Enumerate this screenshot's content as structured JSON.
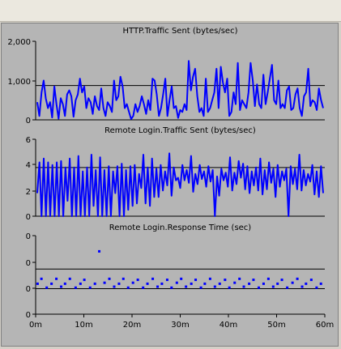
{
  "colors": {
    "plot_bg": "#b5b5b5",
    "series": "#0000ff",
    "axis": "#000000",
    "background": "#d4d0c8"
  },
  "x_axis": {
    "range_minutes": [
      0,
      60
    ],
    "tick_labels": [
      "0m",
      "10m",
      "20m",
      "30m",
      "40m",
      "50m",
      "60m"
    ]
  },
  "chart_data": [
    {
      "type": "line",
      "title": "HTTP.Traffic Sent (bytes/sec)",
      "ylim": [
        0,
        2000
      ],
      "ytick_labels": [
        "2,000",
        "1,000",
        "0"
      ],
      "reference_line_y": 875,
      "series": [
        {
          "values": [
            450,
            100,
            700,
            1000,
            550,
            300,
            450,
            60,
            850,
            400,
            30,
            550,
            400,
            100,
            650,
            750,
            600,
            80,
            500,
            650,
            1050,
            700,
            850,
            300,
            550,
            450,
            150,
            600,
            350,
            250,
            800,
            300,
            100,
            450,
            350,
            200,
            1000,
            500,
            600,
            1100,
            850,
            300,
            400,
            200,
            20,
            100,
            400,
            200,
            350,
            600,
            400,
            150,
            500,
            250,
            1050,
            1000,
            650,
            100,
            300,
            650,
            1050,
            100,
            500,
            850,
            300,
            350,
            50,
            250,
            200,
            400,
            250,
            1500,
            750,
            1100,
            1300,
            600,
            200,
            300,
            100,
            1050,
            200,
            300,
            500,
            700,
            1300,
            300,
            1350,
            950,
            700,
            1050,
            100,
            200,
            700,
            400,
            1450,
            250,
            500,
            400,
            300,
            700,
            1450,
            1000,
            350,
            900,
            400,
            300,
            1150,
            400,
            700,
            1050,
            1400,
            500,
            400,
            1000,
            300,
            400,
            300,
            750,
            850,
            250,
            300,
            650,
            800,
            300,
            100,
            600,
            700,
            1300,
            350,
            500,
            450,
            250,
            800,
            500,
            300
          ]
        }
      ]
    },
    {
      "type": "line",
      "title": "Remote Login.Traffic Sent (bytes/sec)",
      "ylim": [
        0,
        6
      ],
      "ytick_labels": [
        "6",
        "4",
        "2",
        "0"
      ],
      "reference_line_y": 3.8,
      "series": [
        {
          "values": [
            1.8,
            4.2,
            0,
            4.5,
            0,
            4.2,
            0,
            4.0,
            0,
            4.2,
            0,
            4.3,
            0,
            3.8,
            1.2,
            4.5,
            0,
            3.8,
            0,
            4.7,
            0,
            3.5,
            0,
            3.8,
            0,
            4.8,
            0.8,
            3.6,
            0,
            4.6,
            0,
            3.6,
            0,
            3.9,
            0,
            3.5,
            1.8,
            3.9,
            0,
            4.1,
            0,
            3.6,
            0.5,
            3.9,
            0.8,
            4.0,
            1.0,
            3.3,
            2.2,
            4.8,
            1.0,
            3.8,
            0.8,
            4.5,
            1.5,
            3.7,
            1.5,
            4.0,
            2.0,
            3.5,
            2.4,
            4.9,
            1.6,
            3.8,
            2.8,
            3.0,
            2.2,
            4.0,
            2.8,
            3.6,
            2.6,
            4.7,
            1.9,
            3.3,
            2.5,
            4.0,
            2.9,
            3.5,
            2.3,
            3.9,
            2.7,
            3.6,
            0,
            3.1,
            1.6,
            3.7,
            2.8,
            3.4,
            2.3,
            4.6,
            2.0,
            3.4,
            2.5,
            4.3,
            3.0,
            4.1,
            2.1,
            3.9,
            1.8,
            3.5,
            2.4,
            3.8,
            2.0,
            4.5,
            1.7,
            3.6,
            2.1,
            4.2,
            2.6,
            3.7,
            1.5,
            4.0,
            2.3,
            3.5,
            2.8,
            3.7,
            0,
            3.9,
            2.5,
            3.7,
            2.1,
            4.8,
            2.0,
            3.6,
            2.4,
            3.3,
            2.7,
            4.0,
            1.7,
            3.5,
            1.5,
            3.9,
            1.8
          ]
        }
      ]
    },
    {
      "type": "scatter",
      "title": "Remote Login.Response Time (sec)",
      "ylim": [
        0,
        4
      ],
      "ytick_labels": [
        "0",
        "0",
        "0",
        "0"
      ],
      "reference_lines_y": [
        1.3,
        2.3
      ],
      "series": [
        {
          "x": [
            0.4,
            1.2,
            2.3,
            3.3,
            4.3,
            5.3,
            6.1,
            7.1,
            8.3,
            9.3,
            10.1,
            11.3,
            12.3,
            13.2,
            14.3,
            15.3,
            16.3,
            17.3,
            18.2,
            19.2,
            20.2,
            21.2,
            22.3,
            23.2,
            24.3,
            25.3,
            26.2,
            27.3,
            28.2,
            29.3,
            30.2,
            31.2,
            32.3,
            33.2,
            34.3,
            35.1,
            36.2,
            37.2,
            38.2,
            39.3,
            40.2,
            41.3,
            42.3,
            43.2,
            44.3,
            45.2,
            46.3,
            47.3,
            48.3,
            49.3,
            50.2,
            51.1,
            52.2,
            53.3,
            54.3,
            55.3,
            56.1,
            57.2,
            58.3,
            59.2
          ],
          "y": [
            1.55,
            1.8,
            1.35,
            1.55,
            1.8,
            1.4,
            1.55,
            1.8,
            1.35,
            1.55,
            1.75,
            1.35,
            1.55,
            3.2,
            1.6,
            1.8,
            1.4,
            1.55,
            1.8,
            1.35,
            1.6,
            1.75,
            1.35,
            1.55,
            1.8,
            1.4,
            1.55,
            1.75,
            1.35,
            1.6,
            1.8,
            1.4,
            1.55,
            1.75,
            1.35,
            1.55,
            1.8,
            1.4,
            1.55,
            1.75,
            1.35,
            1.6,
            1.8,
            1.4,
            1.55,
            1.75,
            1.35,
            1.55,
            1.8,
            1.4,
            1.55,
            1.75,
            1.35,
            1.6,
            1.8,
            1.4,
            1.55,
            1.75,
            1.35,
            1.55
          ]
        }
      ]
    }
  ]
}
